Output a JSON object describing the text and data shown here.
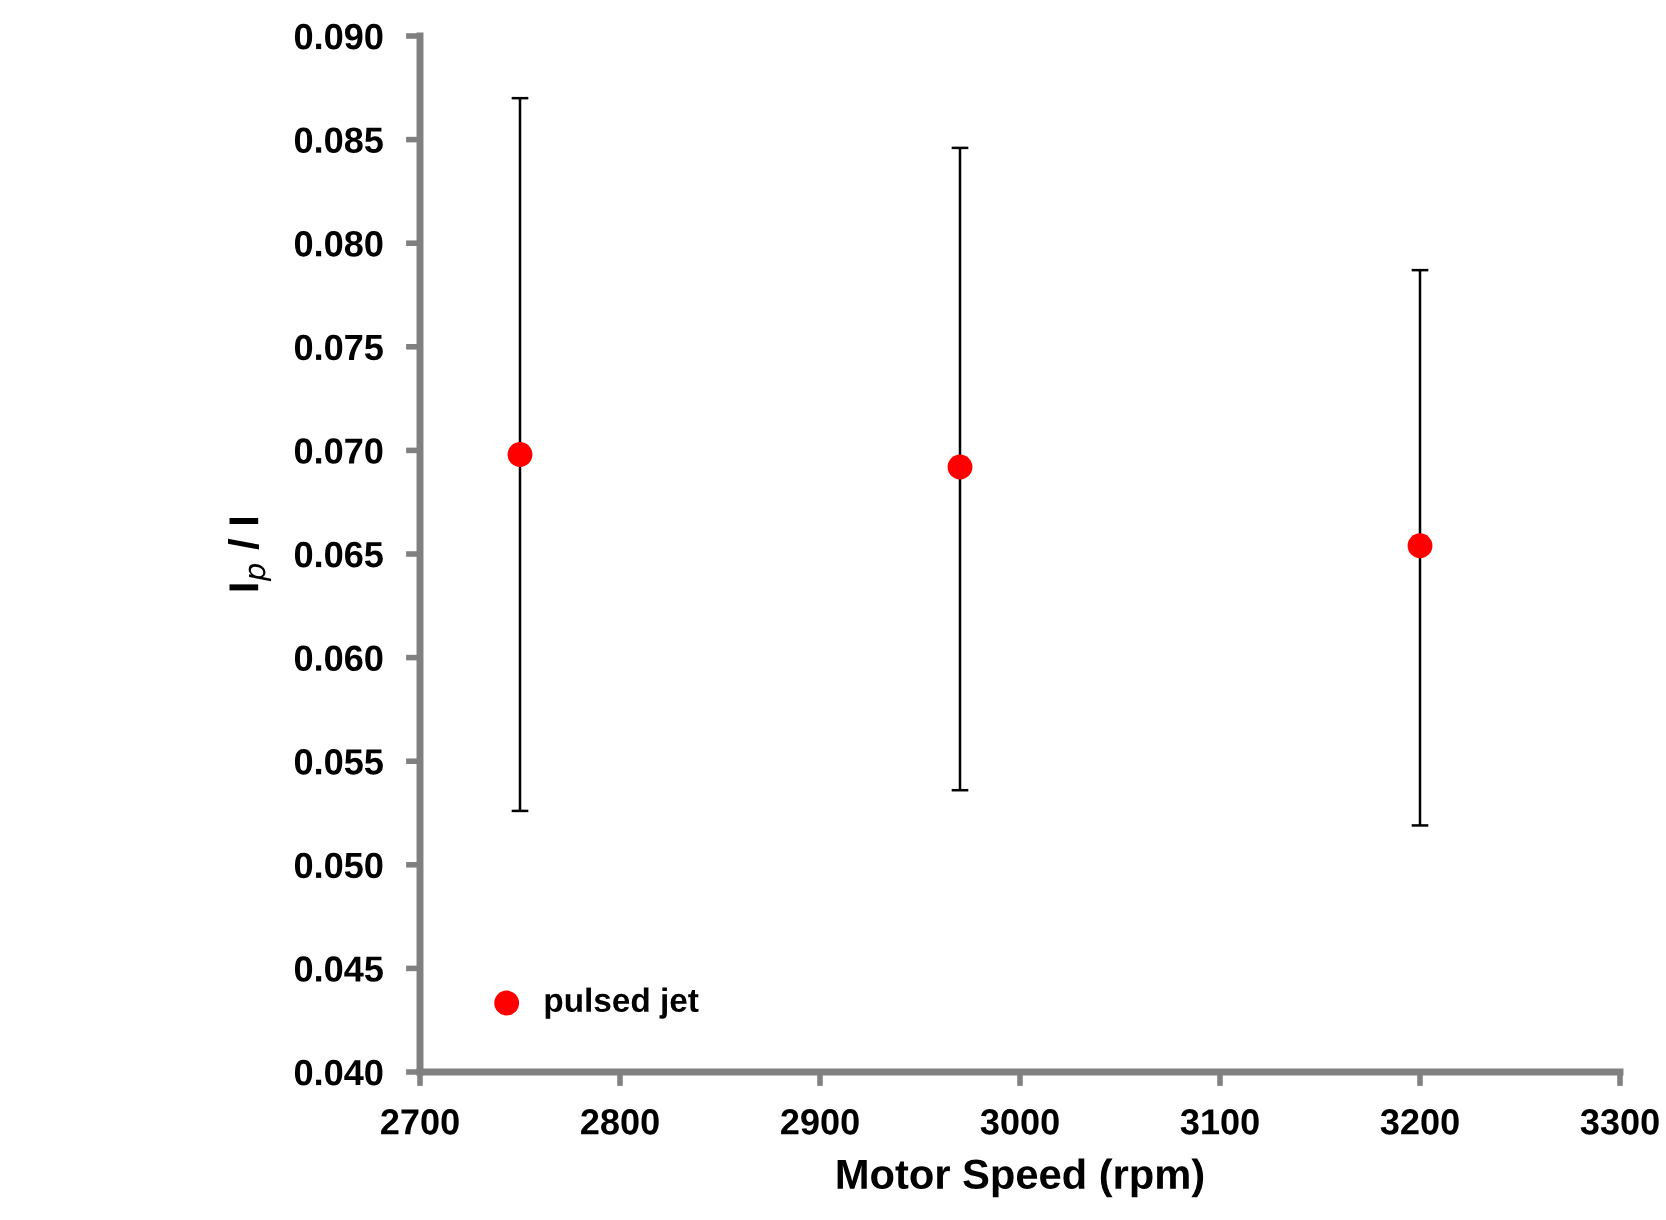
{
  "chart_data": {
    "type": "scatter",
    "xlabel": "Motor Speed (rpm)",
    "ylabel": "I$_{p}$ / I",
    "x": [
      2750,
      2970,
      3200
    ],
    "series": [
      {
        "name": "pulsed jet",
        "color": "#ff0000",
        "values": [
          0.0698,
          0.0692,
          0.0654
        ],
        "errors": [
          [
            0.0526,
            0.087
          ],
          [
            0.0536,
            0.0846
          ],
          [
            0.0519,
            0.0787
          ]
        ]
      }
    ],
    "xlim": [
      2700,
      3300
    ],
    "xticks": [
      2700,
      2800,
      2900,
      3000,
      3100,
      3200,
      3300
    ],
    "ylim": [
      0.04,
      0.09
    ],
    "yticks": [
      {
        "value": 0.04,
        "label": "0.040"
      },
      {
        "value": 0.045,
        "label": "0.045"
      },
      {
        "value": 0.05,
        "label": "0.050"
      },
      {
        "value": 0.055,
        "label": "0.055"
      },
      {
        "value": 0.06,
        "label": "0.060"
      },
      {
        "value": 0.065,
        "label": "0.065"
      },
      {
        "value": 0.07,
        "label": "0.070"
      },
      {
        "value": 0.075,
        "label": "0.075"
      },
      {
        "value": 0.08,
        "label": "0.080"
      },
      {
        "value": 0.085,
        "label": "0.085"
      },
      {
        "value": 0.09,
        "label": "0.090"
      }
    ],
    "marker": "circle",
    "grid": false,
    "legend": "bottom left"
  }
}
